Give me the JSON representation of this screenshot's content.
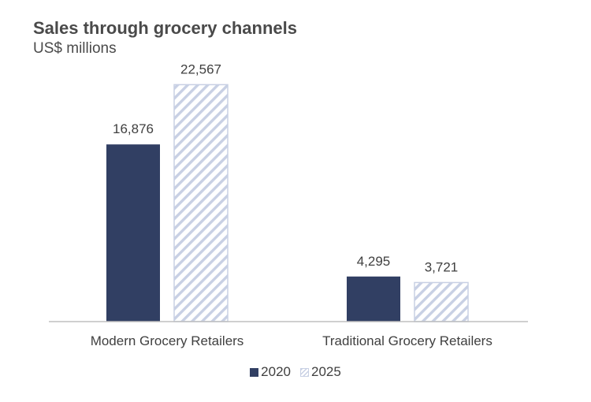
{
  "chart_data": {
    "type": "bar",
    "title": "Sales through grocery channels",
    "subtitle": "US$ millions",
    "categories": [
      "Modern Grocery Retailers",
      "Traditional Grocery Retailers"
    ],
    "series": [
      {
        "name": "2020",
        "values": [
          16876,
          4295
        ],
        "labels": [
          "16,876",
          "4,295"
        ],
        "color": "#313f63",
        "fill": "solid"
      },
      {
        "name": "2025",
        "values": [
          22567,
          3721
        ],
        "labels": [
          "22,567",
          "3,721"
        ],
        "color": "#c8d0e4",
        "fill": "hatched"
      }
    ],
    "ylim": [
      0,
      25000
    ],
    "grid": false,
    "legend_position": "bottom-center",
    "xlabel": "",
    "ylabel": ""
  }
}
